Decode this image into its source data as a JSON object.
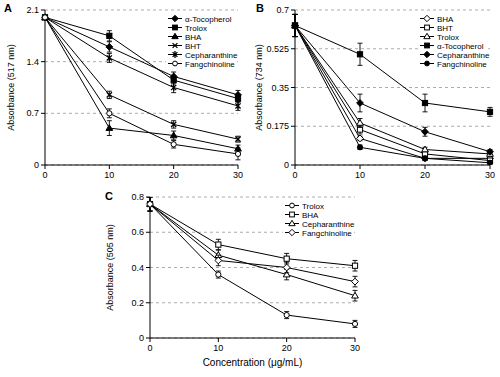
{
  "chart_data": [
    {
      "type": "line",
      "title": "A",
      "y_label": "Absorbance (517 nm)",
      "x": [
        0,
        10,
        20,
        30
      ],
      "xlim": [
        0,
        30
      ],
      "xticks": [
        0,
        10,
        20,
        30
      ],
      "ylim": [
        0,
        2.1
      ],
      "yticks": [
        0,
        0.7,
        1.4,
        2.1
      ],
      "grid": true,
      "legend": "upper-right",
      "color": "#000000",
      "series": [
        {
          "name": "α-Tocopherol",
          "marker": "diamond",
          "values": [
            2.0,
            1.6,
            1.2,
            0.95
          ],
          "errors": [
            0.02,
            0.07,
            0.06,
            0.06
          ]
        },
        {
          "name": "Trolox",
          "marker": "square",
          "values": [
            2.0,
            1.75,
            1.15,
            0.9
          ],
          "errors": [
            0.02,
            0.07,
            0.05,
            0.05
          ]
        },
        {
          "name": "BHA",
          "marker": "triangle",
          "values": [
            2.0,
            0.5,
            0.4,
            0.22
          ],
          "errors": [
            0.02,
            0.1,
            0.06,
            0.05
          ]
        },
        {
          "name": "BHT",
          "marker": "cross",
          "values": [
            2.0,
            0.95,
            0.55,
            0.35
          ],
          "errors": [
            0.02,
            0.05,
            0.05,
            0.04
          ]
        },
        {
          "name": "Cepharanthine",
          "marker": "asterisk",
          "values": [
            2.0,
            1.45,
            1.05,
            0.8
          ],
          "errors": [
            0.02,
            0.06,
            0.07,
            0.06
          ]
        },
        {
          "name": "Fangchinoline",
          "marker": "open-circle",
          "values": [
            2.0,
            0.7,
            0.28,
            0.15
          ],
          "errors": [
            0.02,
            0.06,
            0.05,
            0.08
          ]
        }
      ]
    },
    {
      "type": "line",
      "title": "B",
      "y_label": "Absorbance (734 nm)",
      "x": [
        0,
        10,
        20,
        30
      ],
      "xlim": [
        0,
        30
      ],
      "xticks": [
        0,
        10,
        20,
        30
      ],
      "ylim": [
        0,
        0.7
      ],
      "yticks": [
        0,
        0.175,
        0.35,
        0.525,
        0.7
      ],
      "grid": true,
      "legend": "upper-right",
      "color": "#000000",
      "series": [
        {
          "name": "BHA",
          "marker": "open-diamond",
          "values": [
            0.63,
            0.12,
            0.03,
            0.03
          ],
          "errors": [
            0.05,
            0.01,
            0.01,
            0.01
          ]
        },
        {
          "name": "BHT",
          "marker": "open-square",
          "values": [
            0.63,
            0.16,
            0.05,
            0.02
          ],
          "errors": [
            0.05,
            0.02,
            0.01,
            0.01
          ]
        },
        {
          "name": "Trolox",
          "marker": "open-triangle",
          "values": [
            0.63,
            0.19,
            0.07,
            0.05
          ],
          "errors": [
            0.05,
            0.02,
            0.01,
            0.01
          ]
        },
        {
          "name": "α-Tocopherol",
          "marker": "square",
          "values": [
            0.63,
            0.5,
            0.28,
            0.24
          ],
          "errors": [
            0.05,
            0.05,
            0.04,
            0.02
          ]
        },
        {
          "name": "Cepharanthine",
          "marker": "diamond",
          "values": [
            0.63,
            0.28,
            0.15,
            0.06
          ],
          "errors": [
            0.05,
            0.04,
            0.02,
            0.01
          ]
        },
        {
          "name": "Fangchinoline",
          "marker": "circle",
          "values": [
            0.63,
            0.08,
            0.03,
            0.01
          ],
          "errors": [
            0.05,
            0.01,
            0.01,
            0.01
          ]
        }
      ]
    },
    {
      "type": "line",
      "title": "C",
      "y_label": "Absorbance (505 nm)",
      "x_label": "Concentration (μg/mL)",
      "x": [
        0,
        10,
        20,
        30
      ],
      "xlim": [
        0,
        30
      ],
      "xticks": [
        0,
        10,
        20,
        30
      ],
      "ylim": [
        0,
        0.8
      ],
      "yticks": [
        0,
        0.2,
        0.4,
        0.6,
        0.8
      ],
      "grid": true,
      "legend": "upper-right",
      "color": "#000000",
      "series": [
        {
          "name": "Trolox",
          "marker": "open-circle",
          "values": [
            0.76,
            0.36,
            0.13,
            0.08
          ],
          "errors": [
            0.04,
            0.02,
            0.02,
            0.02
          ]
        },
        {
          "name": "BHA",
          "marker": "open-square",
          "values": [
            0.76,
            0.53,
            0.45,
            0.41
          ],
          "errors": [
            0.04,
            0.03,
            0.03,
            0.03
          ]
        },
        {
          "name": "Cepharanthine",
          "marker": "open-triangle",
          "values": [
            0.76,
            0.47,
            0.36,
            0.24
          ],
          "errors": [
            0.04,
            0.03,
            0.03,
            0.03
          ]
        },
        {
          "name": "Fangchinoline",
          "marker": "open-diamond",
          "values": [
            0.76,
            0.44,
            0.4,
            0.32
          ],
          "errors": [
            0.04,
            0.03,
            0.03,
            0.03
          ]
        }
      ]
    }
  ]
}
